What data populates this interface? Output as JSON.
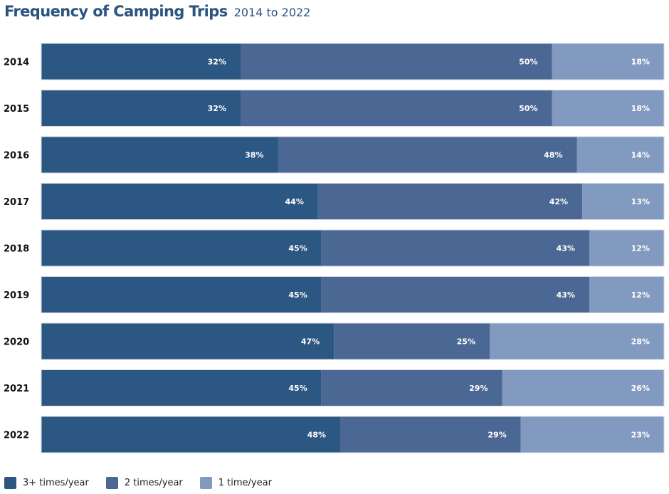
{
  "header": {
    "title": "Frequency of Camping Trips",
    "subtitle": "2014 to 2022"
  },
  "colors": {
    "series_1": "#2c5783",
    "series_2": "#4a6893",
    "series_3": "#8299c0",
    "title": "#2b5480"
  },
  "chart_data": {
    "type": "bar",
    "orientation": "horizontal",
    "stacked": true,
    "title": "Frequency of Camping Trips",
    "subtitle": "2014 to 2022",
    "categories": [
      "2014",
      "2015",
      "2016",
      "2017",
      "2018",
      "2019",
      "2020",
      "2021",
      "2022"
    ],
    "series": [
      {
        "name": "3+ times/year",
        "values": [
          32,
          32,
          38,
          44,
          45,
          45,
          47,
          45,
          48
        ]
      },
      {
        "name": "2 times/year",
        "values": [
          50,
          50,
          48,
          42,
          43,
          43,
          25,
          29,
          29
        ]
      },
      {
        "name": "1 time/year",
        "values": [
          18,
          18,
          14,
          13,
          12,
          12,
          28,
          26,
          23
        ]
      }
    ],
    "value_suffix": "%",
    "legend_position": "bottom-left",
    "grid": false
  }
}
